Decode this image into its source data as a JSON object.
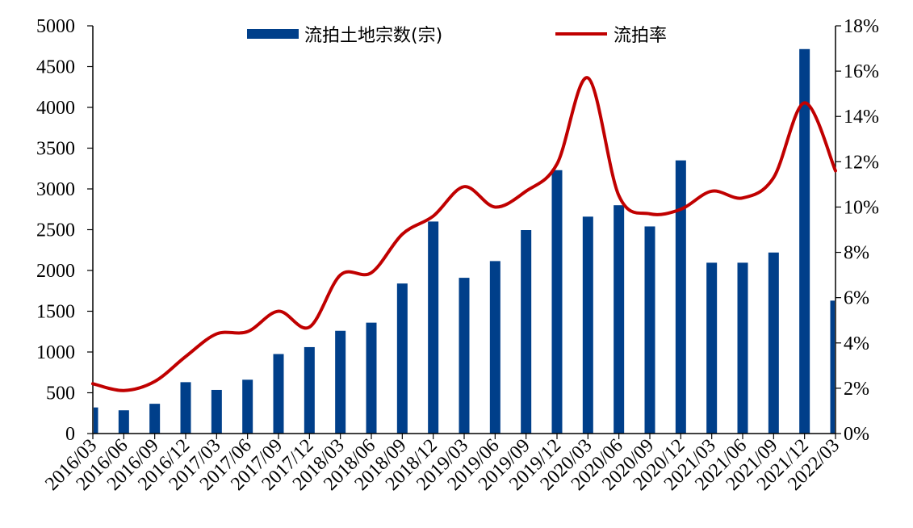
{
  "chart_data": {
    "type": "bar+line",
    "categories": [
      "2016/03",
      "2016/06",
      "2016/09",
      "2016/12",
      "2017/03",
      "2017/06",
      "2017/09",
      "2017/12",
      "2018/03",
      "2018/06",
      "2018/09",
      "2018/12",
      "2019/03",
      "2019/06",
      "2019/09",
      "2019/12",
      "2020/03",
      "2020/06",
      "2020/09",
      "2020/12",
      "2021/03",
      "2021/06",
      "2021/09",
      "2021/12",
      "2022/03"
    ],
    "series": [
      {
        "name": "流拍土地宗数(宗)",
        "type": "bar",
        "axis": "left",
        "color": "#003f8a",
        "values": [
          320,
          285,
          365,
          630,
          535,
          660,
          975,
          1060,
          1260,
          1360,
          1840,
          2600,
          1910,
          2115,
          2495,
          3230,
          2660,
          2800,
          2540,
          3350,
          2095,
          2095,
          2220,
          4715,
          1630
        ]
      },
      {
        "name": "流拍率",
        "type": "line",
        "axis": "right",
        "color": "#c00000",
        "values": [
          2.2,
          1.9,
          2.3,
          3.4,
          4.4,
          4.5,
          5.4,
          4.7,
          7.0,
          7.1,
          8.8,
          9.6,
          10.9,
          10.0,
          10.7,
          11.9,
          15.7,
          10.5,
          9.7,
          9.9,
          10.7,
          10.4,
          11.3,
          14.6,
          11.6
        ]
      }
    ],
    "y_left": {
      "min": 0,
      "max": 5000,
      "ticks": [
        "0",
        "500",
        "1000",
        "1500",
        "2000",
        "2500",
        "3000",
        "3500",
        "4000",
        "4500",
        "5000"
      ]
    },
    "y_right": {
      "min": 0,
      "max": 18,
      "ticks": [
        "0%",
        "2%",
        "4%",
        "6%",
        "8%",
        "10%",
        "12%",
        "14%",
        "16%",
        "18%"
      ]
    },
    "grid": false,
    "legend_position": "top"
  }
}
